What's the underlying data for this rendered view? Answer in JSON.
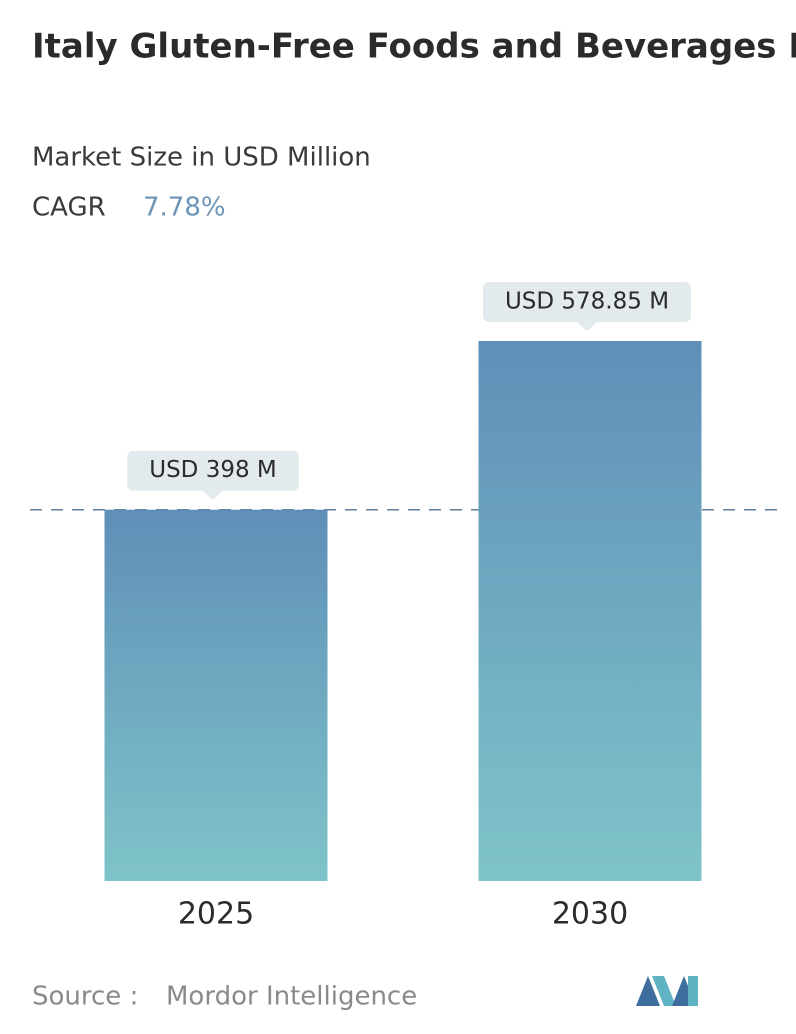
{
  "chart_data": {
    "type": "bar",
    "title": "Italy Gluten-Free Foods and Beverages Market",
    "subtitle": "Market Size in USD Million",
    "cagr_label": "CAGR",
    "cagr": "7.78%",
    "categories": [
      "2025",
      "2030"
    ],
    "values": [
      398,
      578.85
    ],
    "value_labels": [
      "USD 398 M",
      "USD 578.85 M"
    ],
    "colors": [
      "#5f8fb8",
      "#7fc4c9"
    ],
    "source_label": "Source :",
    "source": "Mordor Intelligence"
  }
}
